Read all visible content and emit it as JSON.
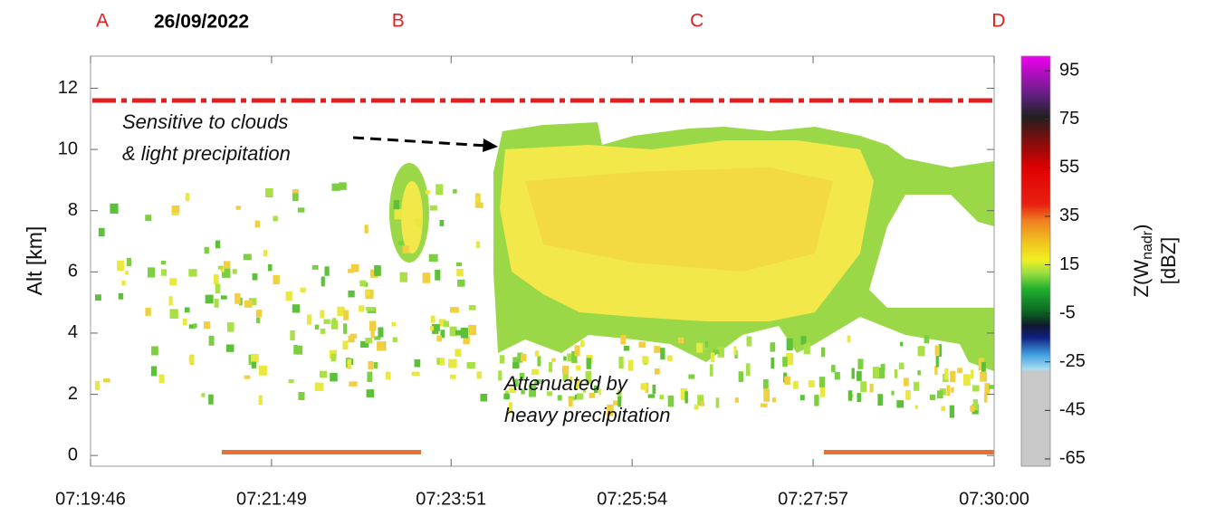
{
  "chart_data": {
    "type": "radar-curtain",
    "date": "26/09/2022",
    "waypoints": [
      {
        "label": "A",
        "x": 26394
      },
      {
        "label": "B",
        "x": 26595
      },
      {
        "label": "C",
        "x": 26798
      },
      {
        "label": "D",
        "x": 27003
      }
    ],
    "ylabel": "Alt [km]",
    "xlim": [
      26386,
      27000
    ],
    "xticks": [
      {
        "value": 26386,
        "label": "07:19:46"
      },
      {
        "value": 26509,
        "label": "07:21:49"
      },
      {
        "value": 26631,
        "label": "07:23:51"
      },
      {
        "value": 26754,
        "label": "07:25:54"
      },
      {
        "value": 26877,
        "label": "07:27:57"
      },
      {
        "value": 27000,
        "label": "07:30:00"
      }
    ],
    "ylim": [
      -0.35,
      13.05
    ],
    "yticks": [
      0,
      2,
      4,
      6,
      8,
      10,
      12
    ],
    "aircraft_altitude": 11.6,
    "aircraft_line_color": "#e02020",
    "annotations": [
      {
        "lines": [
          "Sensitive to clouds",
          "& light precipitation"
        ]
      },
      {
        "lines": [
          "Attenuated by",
          "heavy precipitation"
        ]
      }
    ],
    "colorbar": {
      "label_main": "Z(W",
      "label_sub": "nadr",
      "label_close": ")",
      "unit": "[dBZ]",
      "clim": [
        -68,
        101
      ],
      "ticks": [
        -65,
        -45,
        -25,
        -5,
        15,
        35,
        55,
        75,
        95
      ],
      "colormap": [
        {
          "value": -68,
          "color": "#c8c8c8"
        },
        {
          "value": -29,
          "color": "#c8c8c8"
        },
        {
          "value": -28,
          "color": "#a8dcf0"
        },
        {
          "value": -22,
          "color": "#40a0e0"
        },
        {
          "value": -15,
          "color": "#102080"
        },
        {
          "value": -10,
          "color": "#101830"
        },
        {
          "value": -5,
          "color": "#0a6020"
        },
        {
          "value": 5,
          "color": "#20b030"
        },
        {
          "value": 12,
          "color": "#a0e040"
        },
        {
          "value": 17,
          "color": "#f0f020"
        },
        {
          "value": 25,
          "color": "#f0c020"
        },
        {
          "value": 33,
          "color": "#f08020"
        },
        {
          "value": 40,
          "color": "#e82010"
        },
        {
          "value": 55,
          "color": "#e00000"
        },
        {
          "value": 68,
          "color": "#701010"
        },
        {
          "value": 76,
          "color": "#202020"
        },
        {
          "value": 85,
          "color": "#602080"
        },
        {
          "value": 101,
          "color": "#f000f0"
        }
      ]
    }
  }
}
